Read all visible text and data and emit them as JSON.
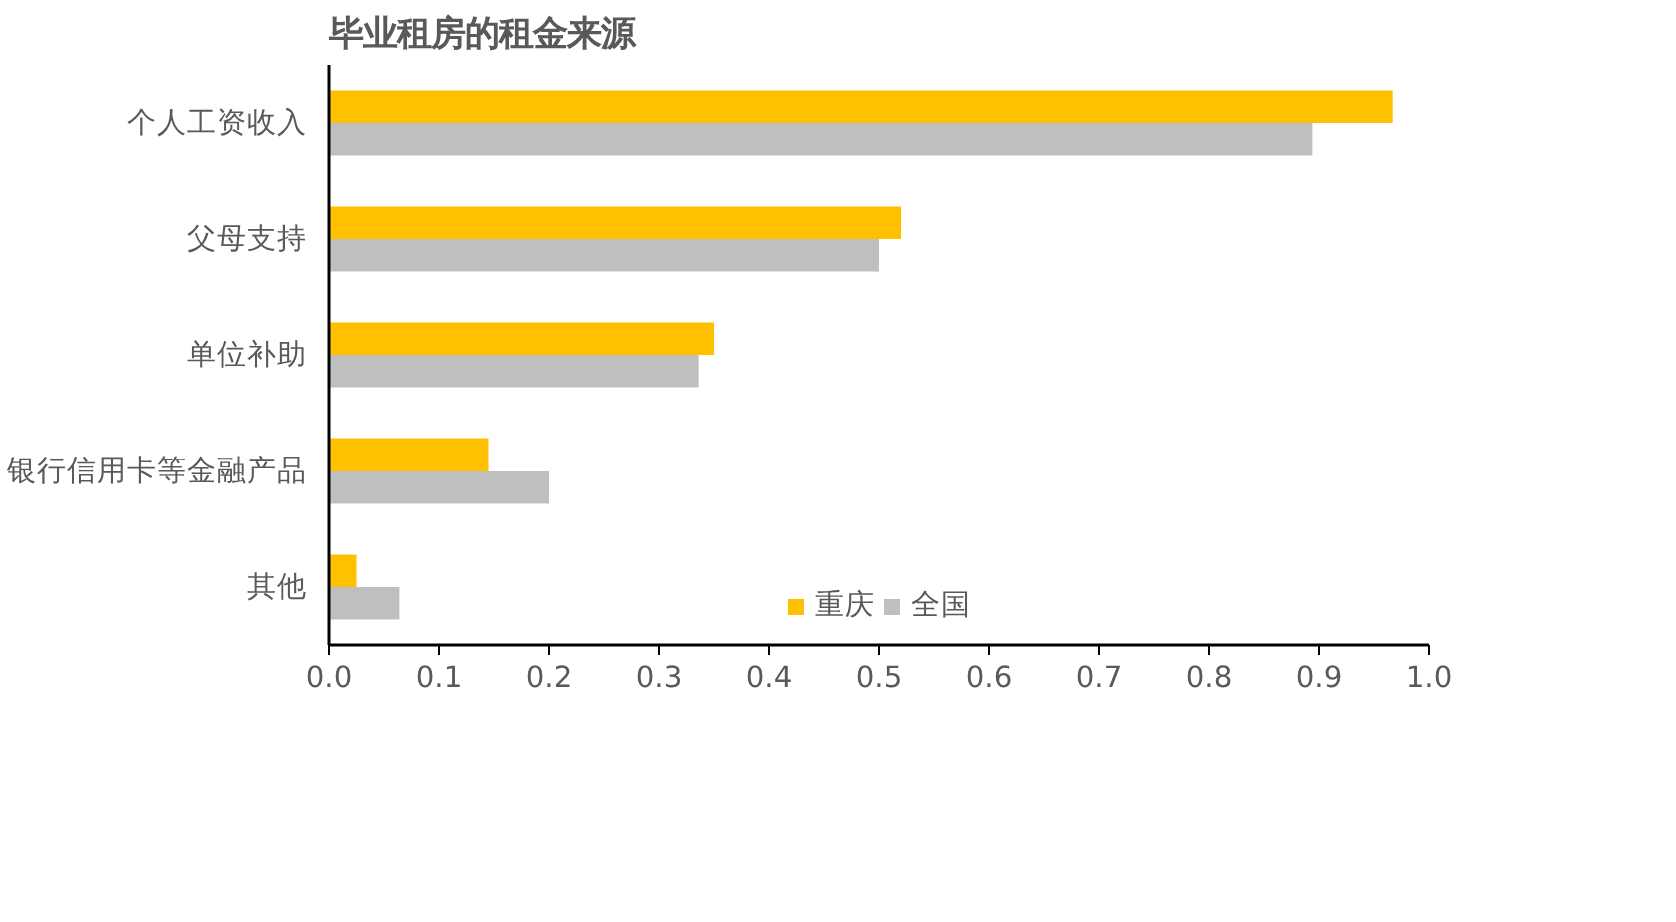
{
  "chart_data": {
    "type": "bar",
    "orientation": "horizontal",
    "title": "毕业租房的租金来源",
    "categories": [
      "个人工资收入",
      "父母支持",
      "单位补助",
      "银行信用卡等金融产品",
      "其他"
    ],
    "series": [
      {
        "name": "重庆",
        "color": "#ffc000",
        "values": [
          0.967,
          0.52,
          0.35,
          0.145,
          0.025
        ]
      },
      {
        "name": "全国",
        "color": "#bfbfbf",
        "values": [
          0.894,
          0.5,
          0.336,
          0.2,
          0.064
        ]
      }
    ],
    "xlim": [
      0,
      1
    ],
    "xticks": [
      "0.0",
      0.1,
      0.2,
      0.3,
      0.4,
      0.5,
      0.6,
      0.7,
      0.8,
      0.9,
      "1.0"
    ],
    "grid": false,
    "legend": "bottom"
  }
}
